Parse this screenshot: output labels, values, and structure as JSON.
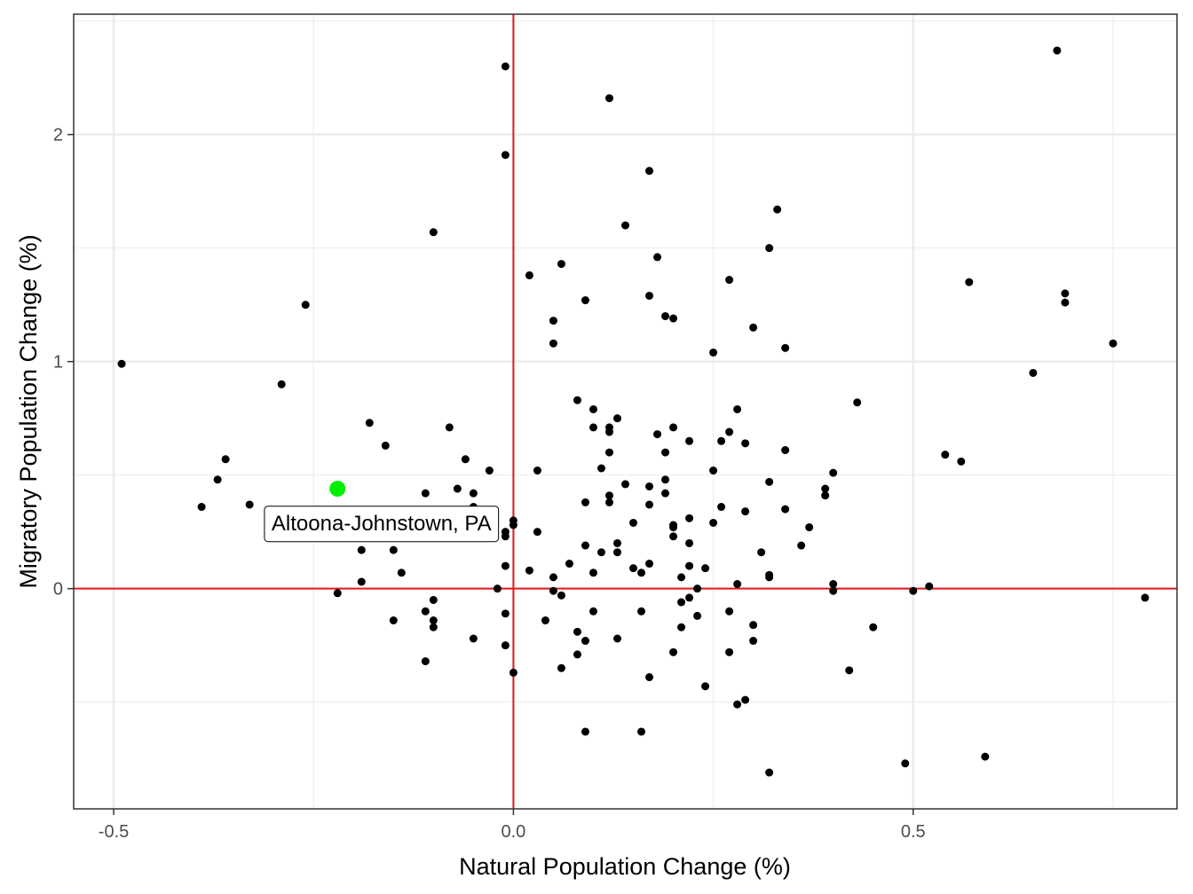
{
  "chart_data": {
    "type": "scatter",
    "title": "",
    "xlabel": "Natural Population Change (%)",
    "ylabel": "Migratory Population Change (%)",
    "xlim": [
      -0.55,
      0.83
    ],
    "ylim": [
      -0.97,
      2.53
    ],
    "x_ticks": [
      -0.5,
      0.0,
      0.5
    ],
    "x_tick_labels": [
      "-0.5",
      "0.0",
      "0.5"
    ],
    "y_ticks": [
      0,
      1,
      2
    ],
    "y_tick_labels": [
      "0",
      "1",
      "2"
    ],
    "grid": true,
    "theme": "bw",
    "reference_lines": {
      "x": 0,
      "y": 0,
      "color": "#e31a1c"
    },
    "point_color": "#000000",
    "highlight": {
      "label": "Altoona-Johnstown, PA",
      "x": -0.22,
      "y": 0.44,
      "color": "#00ee00",
      "label_x": -0.165,
      "label_y": 0.285
    },
    "points": [
      [
        -0.01,
        2.3
      ],
      [
        0.12,
        2.16
      ],
      [
        0.68,
        2.37
      ],
      [
        -0.01,
        1.91
      ],
      [
        0.17,
        1.84
      ],
      [
        0.33,
        1.67
      ],
      [
        0.14,
        1.6
      ],
      [
        -0.1,
        1.57
      ],
      [
        0.32,
        1.5
      ],
      [
        0.18,
        1.46
      ],
      [
        0.06,
        1.43
      ],
      [
        0.02,
        1.38
      ],
      [
        0.27,
        1.36
      ],
      [
        0.57,
        1.35
      ],
      [
        0.69,
        1.3
      ],
      [
        0.17,
        1.29
      ],
      [
        0.09,
        1.27
      ],
      [
        0.69,
        1.26
      ],
      [
        -0.26,
        1.25
      ],
      [
        0.19,
        1.2
      ],
      [
        0.2,
        1.19
      ],
      [
        0.05,
        1.18
      ],
      [
        0.3,
        1.15
      ],
      [
        0.75,
        1.08
      ],
      [
        0.05,
        1.08
      ],
      [
        0.34,
        1.06
      ],
      [
        0.25,
        1.04
      ],
      [
        -0.49,
        0.99
      ],
      [
        0.65,
        0.95
      ],
      [
        -0.29,
        0.9
      ],
      [
        0.08,
        0.83
      ],
      [
        0.43,
        0.82
      ],
      [
        0.1,
        0.79
      ],
      [
        0.28,
        0.79
      ],
      [
        0.13,
        0.75
      ],
      [
        -0.18,
        0.73
      ],
      [
        0.12,
        0.71
      ],
      [
        -0.08,
        0.71
      ],
      [
        0.1,
        0.71
      ],
      [
        0.2,
        0.71
      ],
      [
        0.12,
        0.69
      ],
      [
        0.27,
        0.69
      ],
      [
        0.18,
        0.68
      ],
      [
        0.22,
        0.65
      ],
      [
        0.26,
        0.65
      ],
      [
        0.29,
        0.64
      ],
      [
        -0.16,
        0.63
      ],
      [
        0.12,
        0.6
      ],
      [
        0.19,
        0.6
      ],
      [
        0.34,
        0.61
      ],
      [
        0.54,
        0.59
      ],
      [
        0.56,
        0.56
      ],
      [
        -0.36,
        0.57
      ],
      [
        -0.06,
        0.57
      ],
      [
        0.11,
        0.53
      ],
      [
        -0.03,
        0.52
      ],
      [
        0.03,
        0.52
      ],
      [
        0.25,
        0.52
      ],
      [
        0.4,
        0.51
      ],
      [
        -0.37,
        0.48
      ],
      [
        0.19,
        0.48
      ],
      [
        0.32,
        0.47
      ],
      [
        0.14,
        0.46
      ],
      [
        0.17,
        0.45
      ],
      [
        0.39,
        0.44
      ],
      [
        -0.07,
        0.44
      ],
      [
        -0.11,
        0.42
      ],
      [
        -0.05,
        0.42
      ],
      [
        0.19,
        0.42
      ],
      [
        0.12,
        0.41
      ],
      [
        0.39,
        0.41
      ],
      [
        0.09,
        0.38
      ],
      [
        0.12,
        0.38
      ],
      [
        0.17,
        0.37
      ],
      [
        -0.33,
        0.37
      ],
      [
        -0.39,
        0.36
      ],
      [
        -0.05,
        0.36
      ],
      [
        0.26,
        0.36
      ],
      [
        0.34,
        0.35
      ],
      [
        0.29,
        0.34
      ],
      [
        0.22,
        0.31
      ],
      [
        0.0,
        0.3
      ],
      [
        0.0,
        0.28
      ],
      [
        0.15,
        0.29
      ],
      [
        0.25,
        0.29
      ],
      [
        0.2,
        0.28
      ],
      [
        0.2,
        0.27
      ],
      [
        0.37,
        0.27
      ],
      [
        -0.01,
        0.25
      ],
      [
        0.03,
        0.25
      ],
      [
        -0.01,
        0.23
      ],
      [
        0.2,
        0.23
      ],
      [
        0.13,
        0.2
      ],
      [
        0.22,
        0.2
      ],
      [
        0.09,
        0.19
      ],
      [
        0.36,
        0.19
      ],
      [
        -0.19,
        0.17
      ],
      [
        -0.15,
        0.17
      ],
      [
        0.11,
        0.16
      ],
      [
        0.13,
        0.16
      ],
      [
        0.31,
        0.16
      ],
      [
        0.07,
        0.11
      ],
      [
        0.17,
        0.11
      ],
      [
        -0.01,
        0.1
      ],
      [
        0.22,
        0.1
      ],
      [
        0.15,
        0.09
      ],
      [
        0.24,
        0.09
      ],
      [
        0.02,
        0.08
      ],
      [
        -0.14,
        0.07
      ],
      [
        0.1,
        0.07
      ],
      [
        0.16,
        0.07
      ],
      [
        0.32,
        0.06
      ],
      [
        0.32,
        0.05
      ],
      [
        0.05,
        0.05
      ],
      [
        0.21,
        0.05
      ],
      [
        -0.19,
        0.03
      ],
      [
        0.28,
        0.02
      ],
      [
        0.4,
        0.02
      ],
      [
        0.52,
        0.01
      ],
      [
        -0.02,
        0.0
      ],
      [
        0.23,
        0.0
      ],
      [
        0.05,
        -0.01
      ],
      [
        0.4,
        -0.01
      ],
      [
        0.5,
        -0.01
      ],
      [
        -0.22,
        -0.02
      ],
      [
        0.06,
        -0.03
      ],
      [
        0.22,
        -0.04
      ],
      [
        0.79,
        -0.04
      ],
      [
        -0.1,
        -0.05
      ],
      [
        0.21,
        -0.06
      ],
      [
        -0.11,
        -0.1
      ],
      [
        -0.01,
        -0.11
      ],
      [
        0.1,
        -0.1
      ],
      [
        0.16,
        -0.1
      ],
      [
        0.27,
        -0.1
      ],
      [
        0.23,
        -0.12
      ],
      [
        -0.15,
        -0.14
      ],
      [
        -0.1,
        -0.14
      ],
      [
        0.04,
        -0.14
      ],
      [
        0.3,
        -0.16
      ],
      [
        -0.1,
        -0.17
      ],
      [
        0.21,
        -0.17
      ],
      [
        0.45,
        -0.17
      ],
      [
        0.08,
        -0.19
      ],
      [
        -0.05,
        -0.22
      ],
      [
        0.09,
        -0.23
      ],
      [
        0.13,
        -0.22
      ],
      [
        0.3,
        -0.23
      ],
      [
        -0.01,
        -0.25
      ],
      [
        0.2,
        -0.28
      ],
      [
        0.08,
        -0.29
      ],
      [
        0.27,
        -0.28
      ],
      [
        -0.11,
        -0.32
      ],
      [
        0.06,
        -0.35
      ],
      [
        0.0,
        -0.37
      ],
      [
        0.42,
        -0.36
      ],
      [
        0.17,
        -0.39
      ],
      [
        0.24,
        -0.43
      ],
      [
        0.29,
        -0.49
      ],
      [
        0.28,
        -0.51
      ],
      [
        0.09,
        -0.63
      ],
      [
        0.16,
        -0.63
      ],
      [
        0.59,
        -0.74
      ],
      [
        0.49,
        -0.77
      ],
      [
        0.32,
        -0.81
      ]
    ]
  }
}
